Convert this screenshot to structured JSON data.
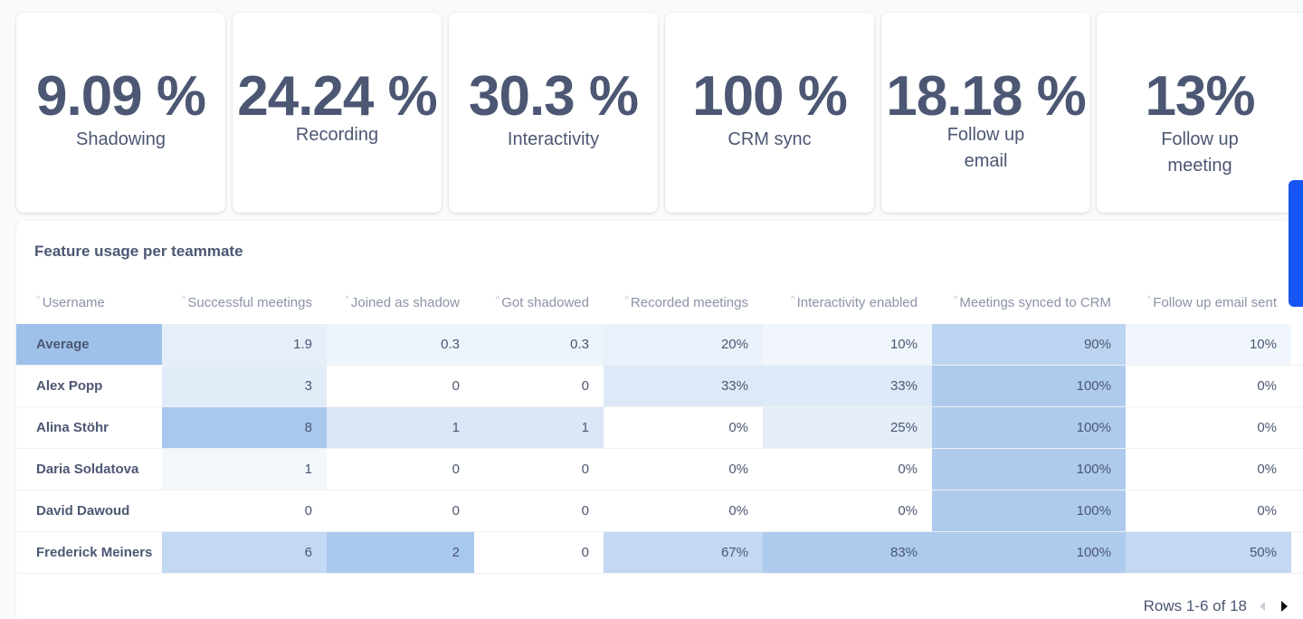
{
  "kpis": [
    {
      "value": "9.09 %",
      "label_lines": [
        "Shadowing"
      ]
    },
    {
      "value": "24.24 %",
      "label_lines": [
        "Recording"
      ]
    },
    {
      "value": "30.3 %",
      "label_lines": [
        "Interactivity"
      ]
    },
    {
      "value": "100 %",
      "label_lines": [
        "CRM sync"
      ]
    },
    {
      "value": "18.18 %",
      "label_lines": [
        "Follow up",
        "email"
      ]
    },
    {
      "value": "13%",
      "label_lines": [
        "Follow up",
        "meeting"
      ]
    }
  ],
  "table": {
    "title": "Feature usage per teammate",
    "columns": [
      "Username",
      "Successful meetings",
      "Joined as shadow",
      "Got shadowed",
      "Recorded meetings",
      "Interactivity enabled",
      "Meetings synced to CRM",
      "Follow up email sent"
    ],
    "rows": [
      [
        "Average",
        "1.9",
        "0.3",
        "0.3",
        "20%",
        "10%",
        "90%",
        "10%"
      ],
      [
        "Alex Popp",
        "3",
        "0",
        "0",
        "33%",
        "33%",
        "100%",
        "0%"
      ],
      [
        "Alina Stöhr",
        "8",
        "1",
        "1",
        "0%",
        "25%",
        "100%",
        "0%"
      ],
      [
        "Daria Soldatova",
        "1",
        "0",
        "0",
        "0%",
        "0%",
        "100%",
        "0%"
      ],
      [
        "David Dawoud",
        "0",
        "0",
        "0",
        "0%",
        "0%",
        "100%",
        "0%"
      ],
      [
        "Frederick Meiners",
        "6",
        "2",
        "0",
        "67%",
        "83%",
        "100%",
        "50%"
      ]
    ],
    "cell_colors": [
      [
        "#9ec1ea",
        "#e6eff9",
        "#eef4fb",
        "#eef4fb",
        "#eaf1fa",
        "#f1f6fc",
        "#bcd4f0",
        "#f1f6fc"
      ],
      [
        "#ffffff",
        "#e1ecf8",
        "#ffffff",
        "#ffffff",
        "#dde9f7",
        "#dde9f7",
        "#aecbee",
        "#ffffff"
      ],
      [
        "#ffffff",
        "#a9c8ee",
        "#dbe7f6",
        "#dbe7f6",
        "#ffffff",
        "#e4edf8",
        "#aecbee",
        "#ffffff"
      ],
      [
        "#ffffff",
        "#f2f7fc",
        "#ffffff",
        "#ffffff",
        "#ffffff",
        "#ffffff",
        "#aecbee",
        "#ffffff"
      ],
      [
        "#ffffff",
        "#ffffff",
        "#ffffff",
        "#ffffff",
        "#ffffff",
        "#ffffff",
        "#aecbee",
        "#ffffff"
      ],
      [
        "#ffffff",
        "#c3d8f2",
        "#a9c8ee",
        "#ffffff",
        "#c3d8f2",
        "#aecbee",
        "#aecbee",
        "#c3d8f2"
      ]
    ],
    "pagination": "Rows 1-6 of 18"
  },
  "colors": {
    "accent": "#1756f5",
    "text": "#4c5773",
    "muted": "#8b93a6"
  }
}
